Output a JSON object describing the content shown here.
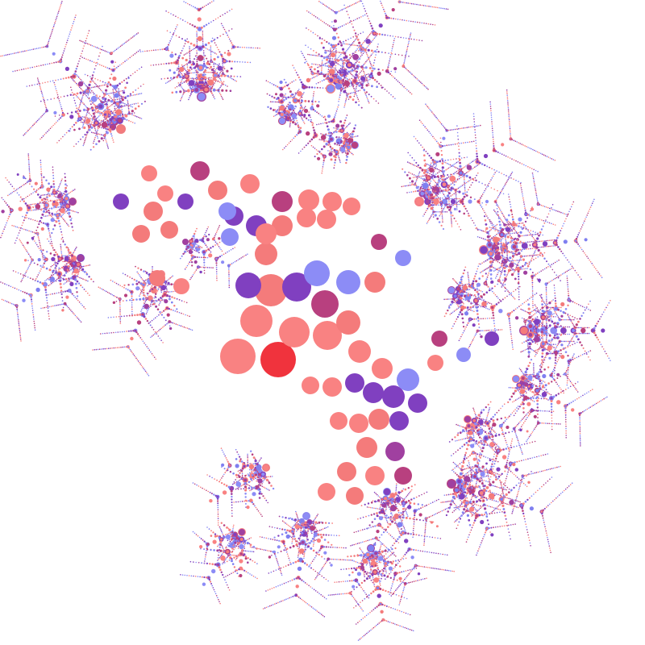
{
  "artwork": {
    "subject": "circle-packing-fractal",
    "background": "#ffffff",
    "palette": {
      "salmon": "#f47b7b",
      "coral": "#f98282",
      "periwinkle": "#7f7ff0",
      "light_blue": "#8c8cf6",
      "violet": "#8040c0",
      "plum": "#a040a0",
      "magenta": "#b8407f",
      "red": "#f0333d"
    }
  }
}
